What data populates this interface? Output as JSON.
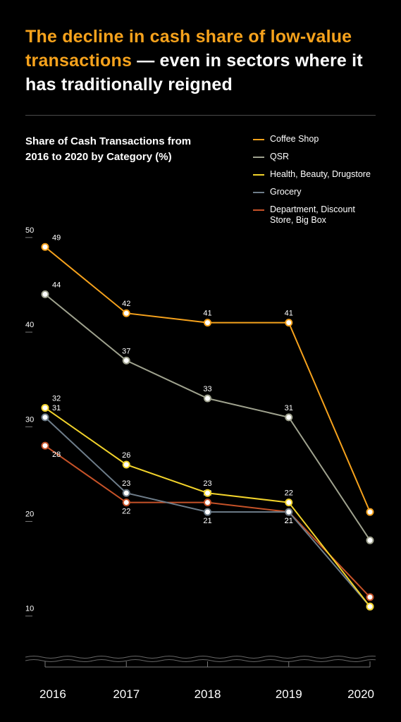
{
  "title": {
    "highlight": "The decline in cash share of low-value transactions",
    "rest": " — even in sectors where it has traditionally reigned",
    "highlight_color": "#f6a21c",
    "rest_color": "#ffffff",
    "fontsize": 25
  },
  "subtitle": "Share of Cash Transactions from 2016 to 2020 by Category (%)",
  "subtitle_fontsize": 15,
  "background_color": "#000000",
  "divider_color": "#4a4a4a",
  "chart": {
    "type": "line",
    "x_labels": [
      "2016",
      "2017",
      "2018",
      "2019",
      "2020"
    ],
    "x_label_fontsize": 17,
    "x_index": [
      0,
      1,
      2,
      3,
      4
    ],
    "y_ticks": [
      10,
      20,
      30,
      40,
      50
    ],
    "y_tick_fontsize": 11,
    "ylim": [
      7,
      52
    ],
    "tick_color": "#777777",
    "tick_label_color": "#ffffff",
    "point_label_color": "#ffffff",
    "point_label_fontsize": 11,
    "marker_radius": 4.5,
    "marker_fill": "#ffffff",
    "line_width": 2,
    "axis_break_wave_color": "#666666",
    "series": [
      {
        "name": "Department, Discount Store, Big Box",
        "color": "#c65228",
        "values": [
          28,
          22,
          22,
          21,
          12
        ],
        "label_dy": [
          16,
          16,
          -10,
          16,
          -10
        ]
      },
      {
        "name": "Grocery",
        "color": "#6e7d8a",
        "values": [
          31,
          23,
          21,
          21,
          11
        ],
        "label_dy": [
          -10,
          -10,
          16,
          16,
          16
        ]
      },
      {
        "name": "Health, Beauty, Drugstore",
        "color": "#f2d32b",
        "values": [
          32,
          26,
          23,
          22,
          11
        ],
        "label_dy": [
          -10,
          -10,
          -10,
          -10,
          16
        ],
        "suppress_labels": [
          4
        ]
      },
      {
        "name": "QSR",
        "color": "#9fa28e",
        "values": [
          44,
          37,
          33,
          31,
          18
        ],
        "label_dy": [
          -10,
          -10,
          -10,
          -10,
          16
        ]
      },
      {
        "name": "Coffee Shop",
        "color": "#f6a21c",
        "values": [
          49,
          42,
          41,
          41,
          21
        ],
        "label_dy": [
          -10,
          -10,
          -10,
          -10,
          -10
        ]
      }
    ],
    "legend_order": [
      4,
      3,
      2,
      1,
      0
    ]
  }
}
